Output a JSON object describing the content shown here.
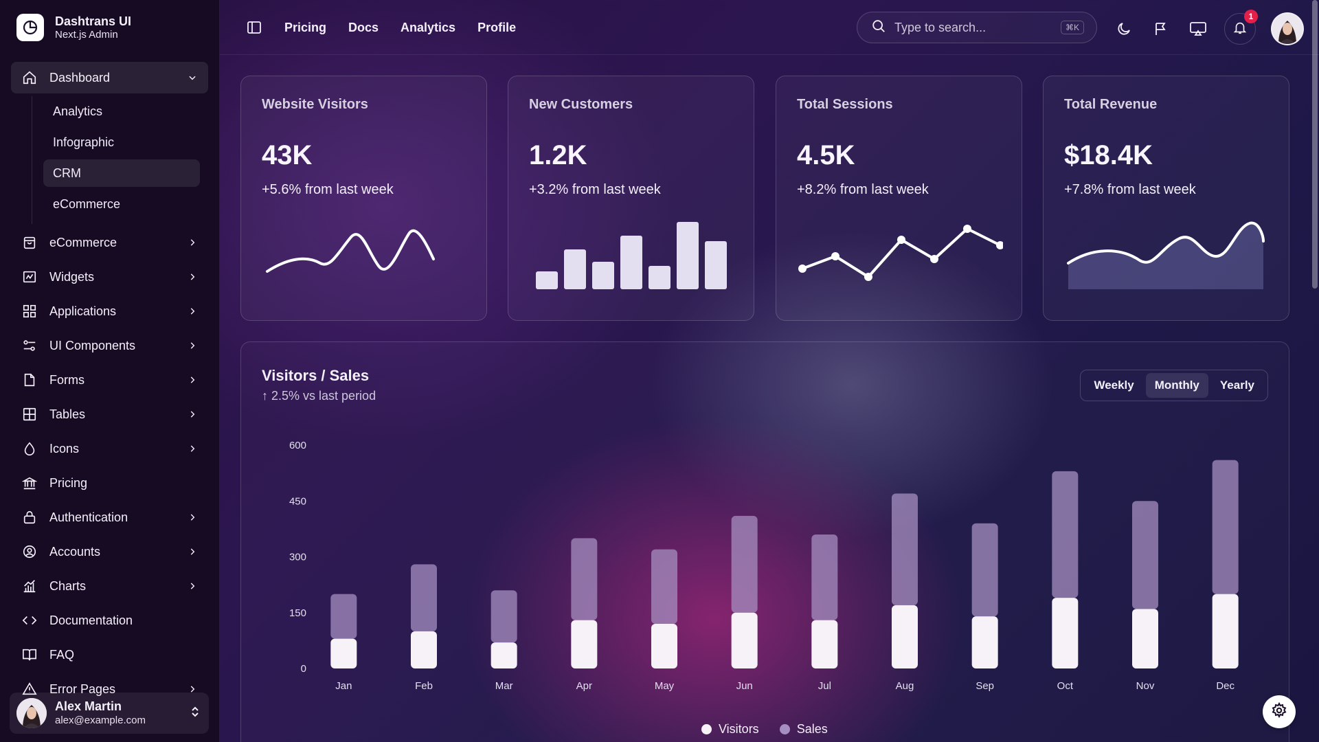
{
  "brand": {
    "title": "Dashtrans UI",
    "subtitle": "Next.js Admin"
  },
  "sidebar": {
    "dashboard": {
      "label": "Dashboard",
      "icon": "home-icon"
    },
    "dashboard_sub": [
      "Analytics",
      "Infographic",
      "CRM",
      "eCommerce"
    ],
    "items": [
      {
        "label": "eCommerce",
        "icon": "bag-icon",
        "chevron": true
      },
      {
        "label": "Widgets",
        "icon": "widgets-icon",
        "chevron": true
      },
      {
        "label": "Applications",
        "icon": "grid-icon",
        "chevron": true
      },
      {
        "label": "UI Components",
        "icon": "components-icon",
        "chevron": true
      },
      {
        "label": "Forms",
        "icon": "file-icon",
        "chevron": true
      },
      {
        "label": "Tables",
        "icon": "table-icon",
        "chevron": true
      },
      {
        "label": "Icons",
        "icon": "drop-icon",
        "chevron": true
      },
      {
        "label": "Pricing",
        "icon": "bank-icon",
        "chevron": false
      },
      {
        "label": "Authentication",
        "icon": "lock-icon",
        "chevron": true
      },
      {
        "label": "Accounts",
        "icon": "user-circle-icon",
        "chevron": true
      },
      {
        "label": "Charts",
        "icon": "chart-icon",
        "chevron": true
      },
      {
        "label": "Documentation",
        "icon": "code-icon",
        "chevron": false
      },
      {
        "label": "FAQ",
        "icon": "book-icon",
        "chevron": false
      },
      {
        "label": "Error Pages",
        "icon": "warning-icon",
        "chevron": true
      }
    ],
    "user": {
      "name": "Alex Martin",
      "email": "alex@example.com"
    }
  },
  "topbar": {
    "links": [
      "Pricing",
      "Docs",
      "Analytics",
      "Profile"
    ],
    "search_placeholder": "Type to search...",
    "search_shortcut": "⌘K",
    "notification_count": "1"
  },
  "stats": [
    {
      "title": "Website Visitors",
      "value": "43K",
      "delta": "+5.6% from last week",
      "mini_chart": "curve"
    },
    {
      "title": "New Customers",
      "value": "1.2K",
      "delta": "+3.2% from last week",
      "mini_chart": "bars"
    },
    {
      "title": "Total Sessions",
      "value": "4.5K",
      "delta": "+8.2% from last week",
      "mini_chart": "points"
    },
    {
      "title": "Total Revenue",
      "value": "$18.4K",
      "delta": "+7.8% from last week",
      "mini_chart": "area"
    }
  ],
  "main_chart": {
    "title": "Visitors / Sales",
    "subtitle": "↑ 2.5% vs last period",
    "periods": [
      "Weekly",
      "Monthly",
      "Yearly"
    ],
    "active_period": "Monthly"
  },
  "chart_data": [
    {
      "type": "bar",
      "categories": [
        "Jan",
        "Feb",
        "Mar",
        "Apr",
        "May",
        "Jun",
        "Jul",
        "Aug",
        "Sep",
        "Oct",
        "Nov",
        "Dec"
      ],
      "series": [
        {
          "name": "Visitors",
          "values": [
            80,
            100,
            70,
            130,
            120,
            150,
            130,
            170,
            140,
            190,
            160,
            200
          ],
          "color": "#f6f2f8"
        },
        {
          "name": "Sales",
          "values": [
            120,
            180,
            140,
            220,
            200,
            260,
            230,
            300,
            250,
            340,
            290,
            360
          ],
          "color": "#a58fc0"
        }
      ],
      "stacked": true,
      "yticks": [
        0,
        150,
        300,
        450,
        600
      ],
      "ylim": [
        0,
        600
      ],
      "legend": "bottom-center"
    }
  ],
  "colors": {
    "accent": "#ffffff",
    "badge": "#e3204a",
    "sidebar_bg": "#170b24"
  }
}
